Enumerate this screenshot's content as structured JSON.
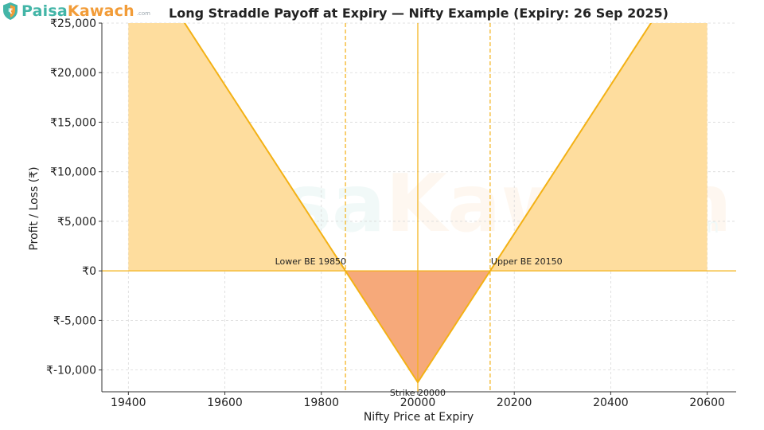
{
  "brand": {
    "name_part1": "Paisa",
    "name_part2": "Kawach",
    "domain": ".com",
    "logo_icon": "shield-icon"
  },
  "watermark": {
    "name_part1": "Paisa",
    "name_part2": "Kawach",
    "domain": ".com"
  },
  "colors": {
    "profit_fill": "#fedd9e",
    "loss_fill": "#f6a97a",
    "payoff_line": "#f3b115",
    "grid": "#d9d9d9",
    "brand_teal": "#43b5a7",
    "brand_orange": "#f29c38"
  },
  "chart_data": {
    "type": "line",
    "title": "Long Straddle Payoff at Expiry — Nifty Example (Expiry: 26 Sep 2025)",
    "xlabel": "Nifty Price at Expiry",
    "ylabel": "Profit / Loss (₹)",
    "xlim": [
      19345,
      20660
    ],
    "ylim": [
      -12200,
      25000
    ],
    "xticks": [
      19400,
      19600,
      19800,
      20000,
      20200,
      20400,
      20600
    ],
    "xtick_labels": [
      "19400",
      "19600",
      "19800",
      "20000",
      "20200",
      "20400",
      "20600"
    ],
    "yticks": [
      -10000,
      -5000,
      0,
      5000,
      10000,
      15000,
      20000,
      25000
    ],
    "ytick_labels": [
      "₹-10,000",
      "₹-5,000",
      "₹0",
      "₹5,000",
      "₹10,000",
      "₹15,000",
      "₹20,000",
      "₹25,000"
    ],
    "grid": true,
    "series": [
      {
        "name": "",
        "x": [
          19400,
          19850,
          20000,
          20150,
          20600
        ],
        "y": [
          33750,
          0,
          -11250,
          0,
          33750
        ]
      }
    ],
    "profit_region_x": [
      19400,
      20600
    ],
    "loss_region_x": [
      19850,
      20150
    ],
    "vlines": [
      {
        "x": 19850,
        "style": "dashed"
      },
      {
        "x": 20000,
        "style": "solid"
      },
      {
        "x": 20150,
        "style": "dashed"
      }
    ],
    "hline_y": 0,
    "annotations": [
      {
        "text": "Lower BE 19850",
        "x": 19850,
        "y": 0
      },
      {
        "text": "Upper BE 20150",
        "x": 20150,
        "y": 0
      },
      {
        "text": "Strike 20000",
        "x": 20000,
        "y": -11250
      }
    ]
  }
}
